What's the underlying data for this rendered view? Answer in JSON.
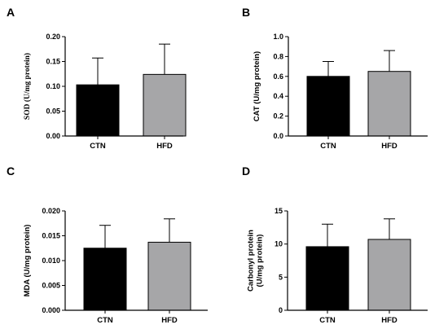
{
  "chart_data": [
    {
      "panel": "A",
      "type": "bar",
      "categories": [
        "CTN",
        "HFD"
      ],
      "values": [
        0.103,
        0.124
      ],
      "errors": [
        0.054,
        0.061
      ],
      "colors": [
        "#000000",
        "#a6a6a8"
      ],
      "ylabel": [
        "SOD (U/mg protein)"
      ],
      "ylim": [
        0,
        0.2
      ],
      "yticks": [
        0,
        0.05,
        0.1,
        0.15,
        0.2
      ],
      "ytick_labels": [
        "0.00",
        "0.05",
        "0.10",
        "0.15",
        "0.20"
      ],
      "serif_ylabel": true
    },
    {
      "panel": "B",
      "type": "bar",
      "categories": [
        "CTN",
        "HFD"
      ],
      "values": [
        0.6,
        0.65
      ],
      "errors": [
        0.15,
        0.21
      ],
      "colors": [
        "#000000",
        "#a6a6a8"
      ],
      "ylabel": [
        "CAT (U/mg protein)"
      ],
      "ylim": [
        0,
        1.0
      ],
      "yticks": [
        0,
        0.2,
        0.4,
        0.6,
        0.8,
        1.0
      ],
      "ytick_labels": [
        "0.0",
        "0.2",
        "0.4",
        "0.6",
        "0.8",
        "1.0"
      ],
      "serif_ylabel": false
    },
    {
      "panel": "C",
      "type": "bar",
      "categories": [
        "CTN",
        "HFD"
      ],
      "values": [
        0.0125,
        0.0137
      ],
      "errors": [
        0.0046,
        0.0047
      ],
      "colors": [
        "#000000",
        "#a6a6a8"
      ],
      "ylabel": [
        "MDA (U/mg protein)"
      ],
      "ylim": [
        0,
        0.02
      ],
      "yticks": [
        0,
        0.005,
        0.01,
        0.015,
        0.02
      ],
      "ytick_labels": [
        "0.000",
        "0.005",
        "0.010",
        "0.015",
        "0.020"
      ],
      "serif_ylabel": false
    },
    {
      "panel": "D",
      "type": "bar",
      "categories": [
        "CTN",
        "HFD"
      ],
      "values": [
        9.6,
        10.7
      ],
      "errors": [
        3.4,
        3.1
      ],
      "colors": [
        "#000000",
        "#a6a6a8"
      ],
      "ylabel": [
        "Carbonyl protein",
        "(U/mg protein)"
      ],
      "ylim": [
        0,
        15
      ],
      "yticks": [
        0,
        5,
        10,
        15
      ],
      "ytick_labels": [
        "0",
        "5",
        "10",
        "15"
      ],
      "serif_ylabel": false
    }
  ]
}
